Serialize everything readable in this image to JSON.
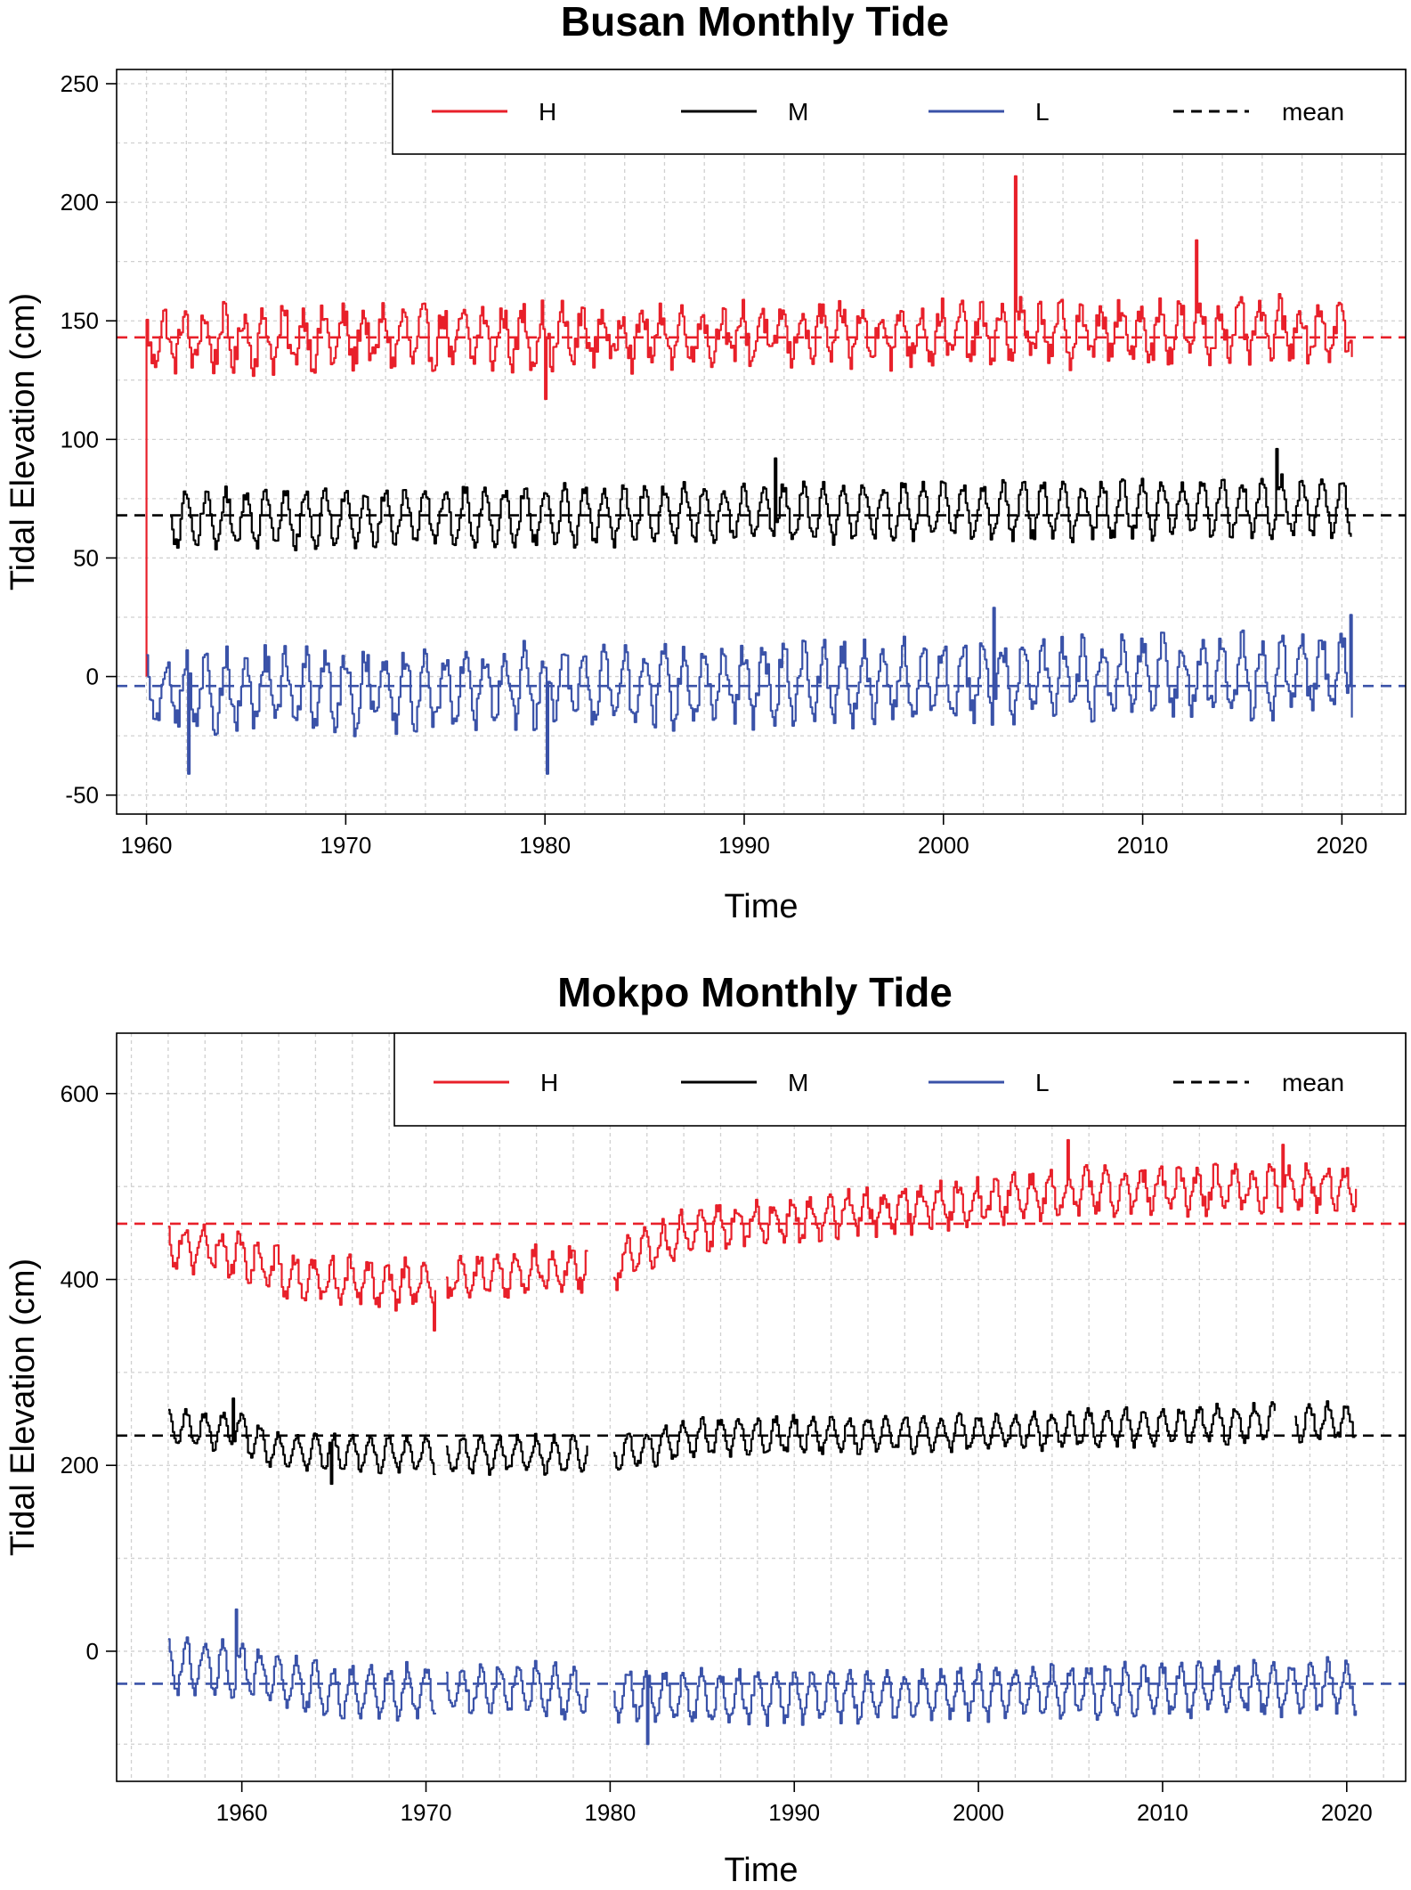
{
  "chart_data": [
    {
      "type": "line",
      "title": "Busan Monthly Tide",
      "xlabel": "Time",
      "ylabel": "Tidal Elevation (cm)",
      "xlim": [
        1958.5,
        2023.2
      ],
      "ylim": [
        -58,
        256
      ],
      "x_ticks": [
        1960,
        1970,
        1980,
        1990,
        2000,
        2010,
        2020
      ],
      "y_ticks": [
        -50,
        0,
        50,
        100,
        150,
        200,
        250
      ],
      "grid": true,
      "legend_position": "top-right",
      "legend": [
        {
          "label": "H",
          "color": "#e8202a",
          "style": "solid"
        },
        {
          "label": "M",
          "color": "#000000",
          "style": "solid"
        },
        {
          "label": "L",
          "color": "#3a52a8",
          "style": "solid"
        },
        {
          "label": "mean",
          "color": "#000000",
          "style": "dashed"
        }
      ],
      "series": [
        {
          "name": "H",
          "color": "#e8202a",
          "start": 1960.0,
          "end": 2020.5,
          "mean": 142,
          "amplitude": 10,
          "noise": 6,
          "trend": 4,
          "phase": 0.6,
          "spikes": [
            {
              "x": 2003.6,
              "y": 211
            },
            {
              "x": 2012.7,
              "y": 184
            },
            {
              "x": 1980.0,
              "y": 117
            }
          ],
          "initial_drop": {
            "x": 1960.0,
            "from": 140,
            "to": 0
          }
        },
        {
          "name": "M",
          "color": "#000000",
          "start": 1961.2,
          "end": 2020.5,
          "mean": 66,
          "amplitude": 11,
          "noise": 3,
          "trend": 6,
          "phase": 0.7,
          "spikes": [
            {
              "x": 2016.7,
              "y": 96
            },
            {
              "x": 1991.5,
              "y": 92
            }
          ]
        },
        {
          "name": "L",
          "color": "#3a52a8",
          "start": 1960.0,
          "end": 2020.5,
          "mean": -7,
          "amplitude": 14,
          "noise": 6,
          "trend": 8,
          "phase": 0.7,
          "spikes": [
            {
              "x": 1962.1,
              "y": -41
            },
            {
              "x": 1980.1,
              "y": -41
            },
            {
              "x": 2002.5,
              "y": 29
            },
            {
              "x": 2020.4,
              "y": 26
            }
          ]
        }
      ],
      "mean_lines": [
        {
          "series": "H",
          "value": 143,
          "color": "#e8202a"
        },
        {
          "series": "M",
          "value": 68,
          "color": "#000000"
        },
        {
          "series": "L",
          "value": -4,
          "color": "#3a52a8"
        }
      ]
    },
    {
      "type": "line",
      "title": "Mokpo Monthly Tide",
      "xlabel": "Time",
      "ylabel": "Tidal Elevation (cm)",
      "xlim": [
        1953.2,
        2023.2
      ],
      "ylim": [
        -140,
        665
      ],
      "x_ticks": [
        1960,
        1970,
        1980,
        1990,
        2000,
        2010,
        2020
      ],
      "y_ticks": [
        0,
        200,
        400,
        600
      ],
      "grid": true,
      "legend_position": "top-right",
      "legend": [
        {
          "label": "H",
          "color": "#e8202a",
          "style": "solid"
        },
        {
          "label": "M",
          "color": "#000000",
          "style": "solid"
        },
        {
          "label": "L",
          "color": "#3a52a8",
          "style": "solid"
        },
        {
          "label": "mean",
          "color": "#000000",
          "style": "dashed"
        }
      ],
      "series": [
        {
          "name": "H",
          "color": "#e8202a",
          "start": 1956.0,
          "end": 2020.5,
          "phase": 0.6,
          "baseline_points": [
            [
              1956,
              440
            ],
            [
              1960,
              425
            ],
            [
              1963,
              400
            ],
            [
              1970,
              395
            ],
            [
              1976,
              410
            ],
            [
              1980,
              415
            ],
            [
              1985,
              455
            ],
            [
              1995,
              475
            ],
            [
              2005,
              495
            ],
            [
              2020,
              500
            ]
          ],
          "amplitude": 20,
          "noise": 10,
          "gaps": [
            [
              1970.5,
              1971.0
            ],
            [
              1978.8,
              1980.1
            ]
          ],
          "spikes": [
            {
              "x": 1970.4,
              "y": 345
            },
            {
              "x": 2004.8,
              "y": 550
            },
            {
              "x": 2016.5,
              "y": 545
            }
          ]
        },
        {
          "name": "M",
          "color": "#000000",
          "start": 1956.0,
          "end": 2020.5,
          "phase": 0.7,
          "baseline_points": [
            [
              1956,
              240
            ],
            [
              1960,
              235
            ],
            [
              1962,
              215
            ],
            [
              1970,
              212
            ],
            [
              1980,
              212
            ],
            [
              1985,
              230
            ],
            [
              2000,
              236
            ],
            [
              2020,
              248
            ]
          ],
          "amplitude": 18,
          "noise": 5,
          "gaps": [
            [
              1970.5,
              1971.0
            ],
            [
              1978.8,
              1980.1
            ],
            [
              2016.1,
              2017.1
            ]
          ],
          "spikes": [
            {
              "x": 1964.8,
              "y": 180
            },
            {
              "x": 1959.5,
              "y": 272
            }
          ]
        },
        {
          "name": "L",
          "color": "#3a52a8",
          "start": 1956.0,
          "end": 2020.5,
          "phase": 0.7,
          "baseline_points": [
            [
              1956,
              -15
            ],
            [
              1960,
              -20
            ],
            [
              1965,
              -45
            ],
            [
              1975,
              -40
            ],
            [
              1980,
              -45
            ],
            [
              1985,
              -50
            ],
            [
              2000,
              -45
            ],
            [
              2020,
              -38
            ]
          ],
          "amplitude": 25,
          "noise": 8,
          "gaps": [
            [
              1970.5,
              1971.0
            ],
            [
              1978.8,
              1980.1
            ]
          ],
          "spikes": [
            {
              "x": 1959.7,
              "y": 45
            },
            {
              "x": 1982.0,
              "y": -100
            }
          ]
        }
      ],
      "mean_lines": [
        {
          "series": "H",
          "value": 460,
          "color": "#e8202a"
        },
        {
          "series": "M",
          "value": 232,
          "color": "#000000"
        },
        {
          "series": "L",
          "value": -35,
          "color": "#3a52a8"
        }
      ]
    }
  ]
}
